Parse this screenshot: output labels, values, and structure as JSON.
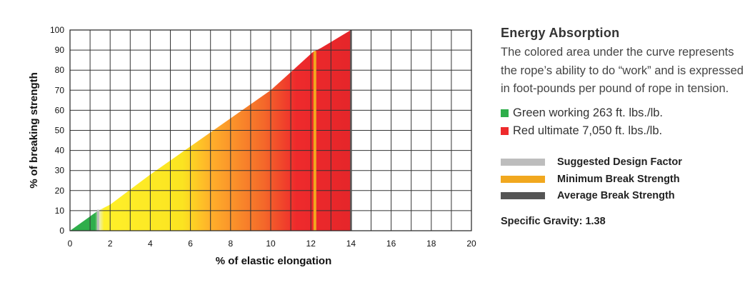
{
  "chart_data": {
    "type": "area",
    "xlabel": "% of elastic elongation",
    "ylabel": "% of breaking strength",
    "xlim": [
      0,
      20
    ],
    "ylim": [
      0,
      100
    ],
    "x_ticks": [
      0,
      2,
      4,
      6,
      8,
      10,
      12,
      14,
      16,
      18,
      20
    ],
    "y_ticks": [
      0,
      10,
      20,
      30,
      40,
      50,
      60,
      70,
      80,
      90,
      100
    ],
    "grid": true,
    "curve": {
      "x": [
        0,
        1.4,
        2,
        4,
        6,
        8,
        10,
        11,
        12.1,
        12.5,
        13,
        13.5,
        14
      ],
      "y": [
        0,
        10,
        13,
        28,
        42,
        56,
        70,
        79,
        89,
        91,
        94,
        97,
        100
      ]
    },
    "working_region_end_x": 1.4,
    "minimum_break_x": 12.2,
    "average_break_x": 14,
    "colors": {
      "green": "#2fae4b",
      "yellow": "#fff02a",
      "orange": "#ffb02a",
      "red": "#ee2a2c",
      "gray": "#bdbdbd",
      "gold": "#f1a81f",
      "dark": "#555555"
    }
  },
  "panel": {
    "title": "Energy Absorption",
    "description": "The colored area under the curve represents the rope’s ability to do “work” and is expressed in foot-pounds per pound of rope in tension.",
    "energy_legend": [
      {
        "label": "Green working 263 ft. lbs./lb.",
        "color": "#2fae4b"
      },
      {
        "label": "Red ultimate 7,050 ft. lbs./lb.",
        "color": "#ee2a2c"
      }
    ],
    "line_legend": [
      {
        "label": "Suggested Design Factor",
        "color": "#bdbdbd"
      },
      {
        "label": "Minimum Break Strength",
        "color": "#f1a81f"
      },
      {
        "label": "Average Break Strength",
        "color": "#555555"
      }
    ],
    "specific_gravity": "Specific Gravity: 1.38"
  }
}
